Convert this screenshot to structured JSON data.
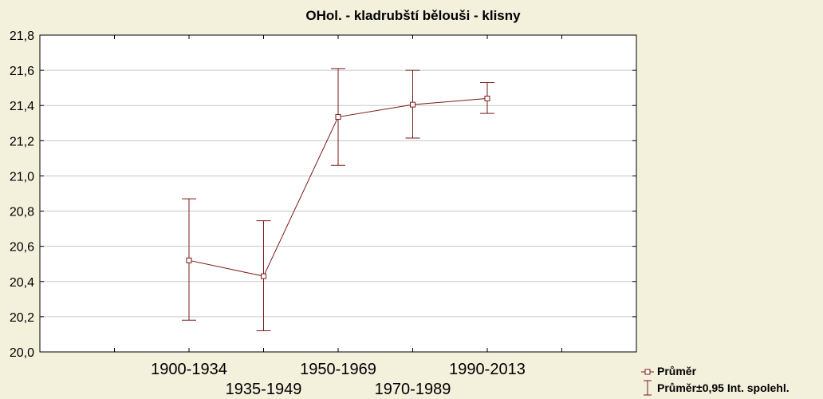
{
  "chart_data": {
    "type": "line",
    "title": "OHol. - kladrubští bělouši - klisny",
    "xlabel": "",
    "ylabel": "",
    "categories": [
      "1900-1934",
      "1935-1949",
      "1950-1969",
      "1970-1989",
      "1990-2013"
    ],
    "ylim": [
      20.0,
      21.8
    ],
    "yticks": [
      "20,0",
      "20,2",
      "20,4",
      "20,6",
      "20,8",
      "21,0",
      "21,2",
      "21,4",
      "21,6",
      "21,8"
    ],
    "grid": true,
    "legend_position": "bottom-right",
    "series": [
      {
        "name": "Průměr",
        "values": [
          20.52,
          20.43,
          21.335,
          21.405,
          21.44
        ],
        "lower": [
          20.18,
          20.12,
          21.06,
          21.215,
          21.355
        ],
        "upper": [
          20.87,
          20.745,
          21.61,
          21.6,
          21.53
        ]
      }
    ],
    "error_bar_label": "Průměr±0,95 Int. spolehl.",
    "colors": {
      "series": "#7a1a1a",
      "background": "#f3f0dc",
      "plot_area": "#ffffff",
      "grid": "#c8c8c8"
    }
  }
}
